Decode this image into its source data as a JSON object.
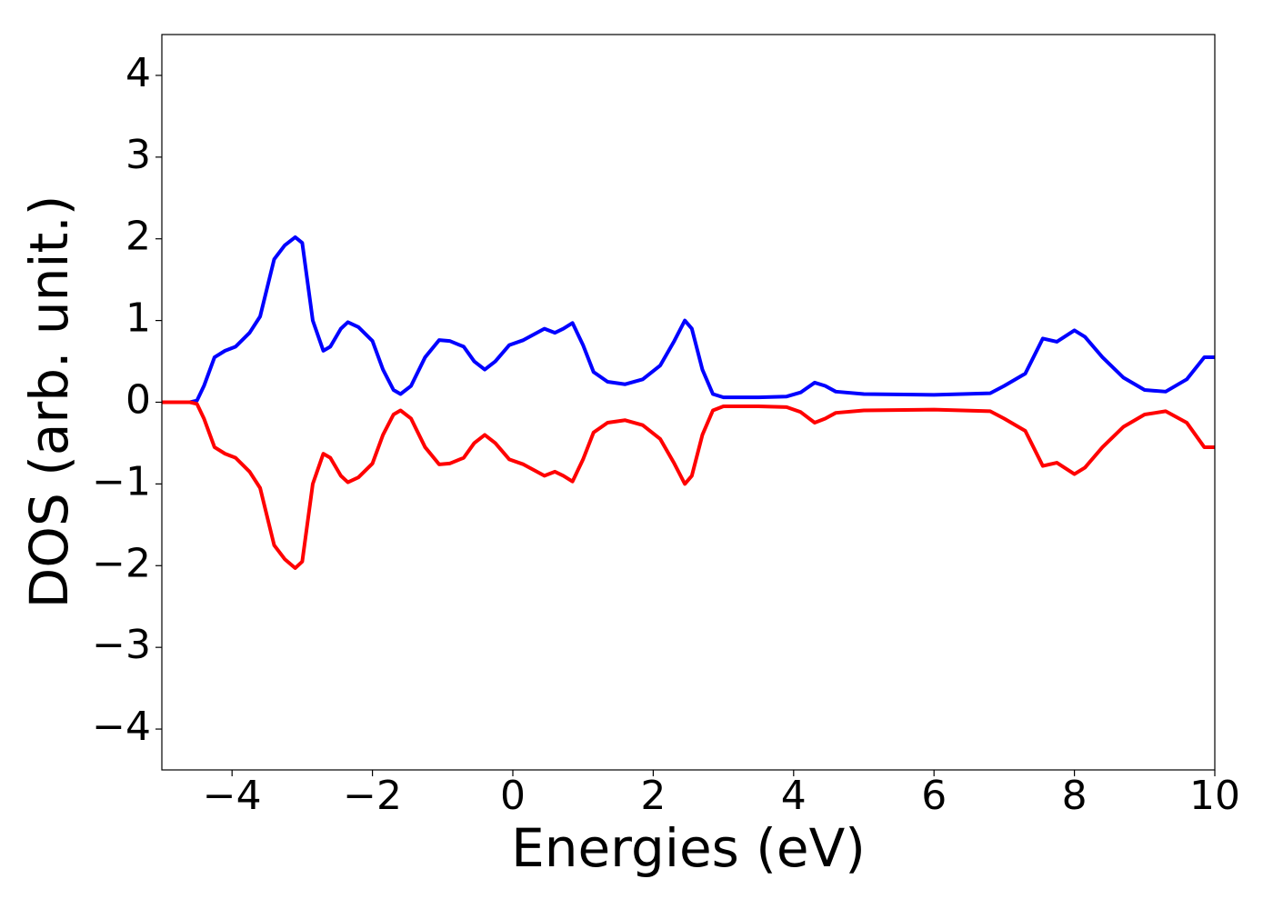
{
  "chart_data": {
    "type": "line",
    "x_label": "Energies (eV)",
    "y_label": "DOS (arb. unit.)",
    "x": [
      -5,
      -4.6,
      -4.5,
      -4.4,
      -4.25,
      -4.1,
      -3.95,
      -3.75,
      -3.6,
      -3.4,
      -3.25,
      -3.1,
      -3.0,
      -2.85,
      -2.7,
      -2.6,
      -2.45,
      -2.35,
      -2.2,
      -2.0,
      -1.85,
      -1.7,
      -1.6,
      -1.45,
      -1.25,
      -1.05,
      -0.9,
      -0.7,
      -0.55,
      -0.4,
      -0.25,
      -0.05,
      0.15,
      0.3,
      0.45,
      0.6,
      0.72,
      0.85,
      1.0,
      1.15,
      1.35,
      1.6,
      1.85,
      2.1,
      2.3,
      2.45,
      2.55,
      2.7,
      2.85,
      3.0,
      3.5,
      3.9,
      4.1,
      4.3,
      4.45,
      4.6,
      5.0,
      6.0,
      6.8,
      7.0,
      7.3,
      7.55,
      7.75,
      8.0,
      8.15,
      8.4,
      8.7,
      9.0,
      9.3,
      9.6,
      9.85,
      10.0
    ],
    "series": [
      {
        "color": "#0000ff",
        "values": [
          0,
          0,
          0.02,
          0.2,
          0.55,
          0.63,
          0.68,
          0.85,
          1.05,
          1.75,
          1.92,
          2.02,
          1.95,
          1.0,
          0.63,
          0.68,
          0.9,
          0.98,
          0.92,
          0.75,
          0.4,
          0.15,
          0.1,
          0.2,
          0.55,
          0.76,
          0.75,
          0.68,
          0.5,
          0.4,
          0.5,
          0.7,
          0.76,
          0.83,
          0.9,
          0.85,
          0.9,
          0.97,
          0.7,
          0.37,
          0.25,
          0.22,
          0.28,
          0.45,
          0.75,
          1.0,
          0.9,
          0.4,
          0.1,
          0.06,
          0.06,
          0.07,
          0.12,
          0.24,
          0.2,
          0.13,
          0.1,
          0.09,
          0.11,
          0.2,
          0.35,
          0.78,
          0.74,
          0.88,
          0.8,
          0.55,
          0.3,
          0.15,
          0.13,
          0.28,
          0.55,
          0.55
        ]
      },
      {
        "color": "#ff0000",
        "values": [
          0,
          0,
          -0.02,
          -0.2,
          -0.55,
          -0.63,
          -0.68,
          -0.85,
          -1.05,
          -1.75,
          -1.92,
          -2.03,
          -1.95,
          -1.0,
          -0.63,
          -0.68,
          -0.9,
          -0.98,
          -0.92,
          -0.75,
          -0.4,
          -0.15,
          -0.1,
          -0.2,
          -0.55,
          -0.76,
          -0.75,
          -0.68,
          -0.5,
          -0.4,
          -0.5,
          -0.7,
          -0.76,
          -0.83,
          -0.9,
          -0.85,
          -0.9,
          -0.97,
          -0.7,
          -0.37,
          -0.25,
          -0.22,
          -0.28,
          -0.45,
          -0.75,
          -1.0,
          -0.9,
          -0.4,
          -0.1,
          -0.05,
          -0.05,
          -0.06,
          -0.12,
          -0.25,
          -0.2,
          -0.13,
          -0.1,
          -0.09,
          -0.11,
          -0.2,
          -0.35,
          -0.78,
          -0.74,
          -0.88,
          -0.8,
          -0.55,
          -0.3,
          -0.15,
          -0.11,
          -0.25,
          -0.55,
          -0.55
        ]
      }
    ],
    "xlim": [
      -5,
      10
    ],
    "ylim": [
      -4.5,
      4.5
    ],
    "xticks": [
      {
        "value": -4,
        "label": "−4"
      },
      {
        "value": -2,
        "label": "−2"
      },
      0,
      2,
      4,
      6,
      8,
      10
    ],
    "yticks": [
      {
        "value": -4,
        "label": "−4"
      },
      {
        "value": -3,
        "label": "−3"
      },
      {
        "value": -2,
        "label": "−2"
      },
      {
        "value": -1,
        "label": "−1"
      },
      0,
      1,
      2,
      3,
      4
    ],
    "grid": false
  }
}
